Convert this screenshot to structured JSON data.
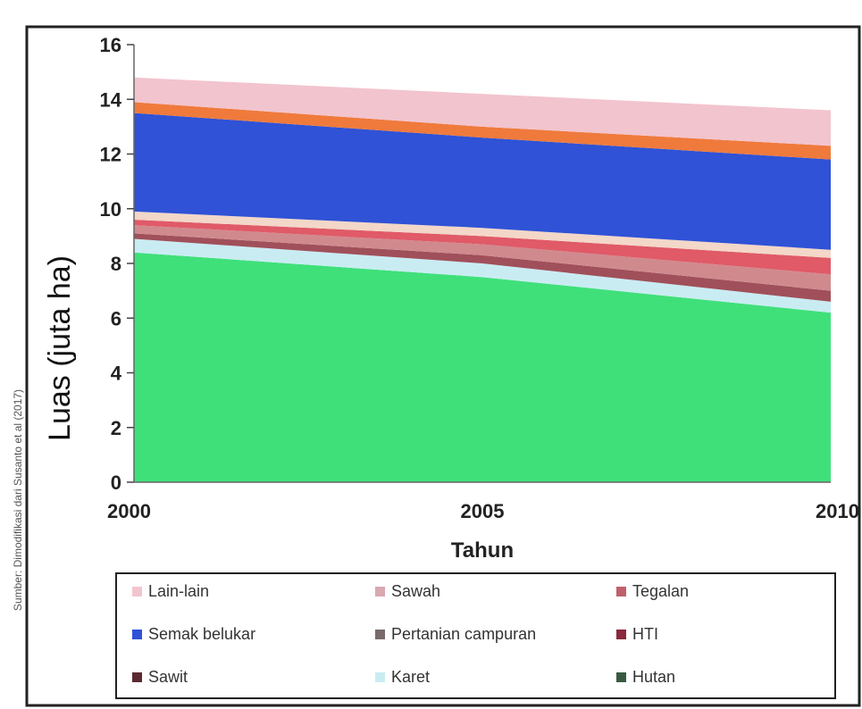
{
  "chart_data": {
    "type": "area",
    "stacked": true,
    "x": [
      2000,
      2005,
      2010
    ],
    "xlabel": "Tahun",
    "ylabel": "Luas (juta ha)",
    "ylim": [
      0,
      16
    ],
    "yticks": [
      0,
      2,
      4,
      6,
      8,
      10,
      12,
      14,
      16
    ],
    "xticks": [
      2000,
      2005,
      2010
    ],
    "grid": false,
    "legend_position": "bottom",
    "source": "Sumber: Dimodifikasi dari Susanto et al (2017)",
    "series": [
      {
        "name": "Hutan",
        "values": [
          8.4,
          7.5,
          6.2
        ],
        "color": "#3fe07a"
      },
      {
        "name": "Karet",
        "values": [
          0.5,
          0.5,
          0.4
        ],
        "color": "#c9ecf3"
      },
      {
        "name": "Sawit",
        "values": [
          0.2,
          0.3,
          0.4
        ],
        "color": "#a0505a"
      },
      {
        "name": "HTI",
        "values": [
          0.3,
          0.4,
          0.6
        ],
        "color": "#d08a8e"
      },
      {
        "name": "Pertanian campuran",
        "values": [
          0.2,
          0.3,
          0.6
        ],
        "color": "#e05a68"
      },
      {
        "name": "Tegalan",
        "values": [
          0.3,
          0.3,
          0.3
        ],
        "color": "#f3d7c8"
      },
      {
        "name": "Semak belukar",
        "values": [
          3.6,
          3.3,
          3.3
        ],
        "color": "#2f52d6"
      },
      {
        "name": "Sawah",
        "values": [
          0.4,
          0.4,
          0.5
        ],
        "color": "#ef7a3c"
      },
      {
        "name": "Lain-lain",
        "values": [
          0.9,
          1.2,
          1.3
        ],
        "color": "#f2c4ce"
      }
    ],
    "legend": [
      {
        "name": "Lain-lain",
        "color": "#f2c4ce"
      },
      {
        "name": "Sawah",
        "color": "#d9a8b0"
      },
      {
        "name": "Tegalan",
        "color": "#c0606c"
      },
      {
        "name": "Semak belukar",
        "color": "#2f52d6"
      },
      {
        "name": "Pertanian campuran",
        "color": "#7a6a6a"
      },
      {
        "name": "HTI",
        "color": "#8a2a3a"
      },
      {
        "name": "Sawit",
        "color": "#5a2a30"
      },
      {
        "name": "Karet",
        "color": "#c9ecf3"
      },
      {
        "name": "Hutan",
        "color": "#3a5a40"
      }
    ]
  }
}
